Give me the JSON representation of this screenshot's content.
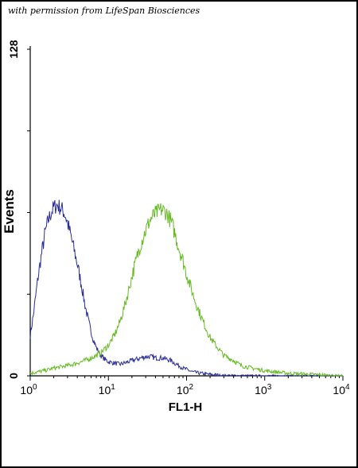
{
  "credit": "with permission from LifeSpan Biosciences",
  "colors": {
    "series_blue": "#2b2e9a",
    "series_green": "#66bb22",
    "axis": "#000000"
  },
  "chart_data": {
    "type": "line",
    "title": "",
    "xlabel": "FL1-H",
    "ylabel": "Events",
    "x_scale": "log",
    "xlim": [
      1,
      10000
    ],
    "ylim": [
      0,
      128
    ],
    "x_ticks": [
      {
        "base": "10",
        "exp": "0"
      },
      {
        "base": "10",
        "exp": "1"
      },
      {
        "base": "10",
        "exp": "2"
      },
      {
        "base": "10",
        "exp": "3"
      },
      {
        "base": "10",
        "exp": "4"
      }
    ],
    "y_ticks": [
      "0",
      "128"
    ],
    "grid": false,
    "legend": "none",
    "series": [
      {
        "color": "#2b2e9a",
        "x": [
          1.0,
          1.1,
          1.25,
          1.4,
          1.55,
          1.7,
          1.85,
          2.0,
          2.2,
          2.4,
          2.6,
          2.8,
          3.0,
          3.3,
          3.6,
          4.0,
          4.5,
          5.0,
          5.6,
          6.3,
          7.0,
          8.0,
          9.0,
          10,
          12,
          14,
          16,
          18,
          20,
          23,
          26,
          30,
          35,
          40,
          45,
          50,
          56,
          63,
          70,
          80,
          90,
          100,
          120,
          150,
          200,
          300,
          500,
          1000,
          10000
        ],
        "y": [
          16,
          24,
          38,
          48,
          56,
          61,
          64,
          66,
          67,
          66,
          65,
          63,
          60,
          55,
          50,
          44,
          36,
          28,
          21,
          15,
          11,
          8,
          6.5,
          5.5,
          5,
          4.5,
          5,
          5.5,
          6,
          6.5,
          7,
          7.5,
          7.5,
          7,
          7,
          7,
          6.5,
          6,
          5,
          4,
          3,
          2.5,
          1.5,
          1,
          0.5,
          0.2,
          0.1,
          0,
          0
        ]
      },
      {
        "color": "#66bb22",
        "x": [
          1.0,
          1.5,
          2.0,
          3.0,
          4.0,
          5.0,
          6.0,
          7.0,
          8.0,
          10,
          12,
          14,
          16,
          18,
          20,
          23,
          26,
          30,
          34,
          38,
          42,
          46,
          50,
          55,
          60,
          66,
          72,
          80,
          90,
          100,
          115,
          130,
          150,
          175,
          200,
          250,
          300,
          400,
          500,
          700,
          1000,
          2000,
          10000
        ],
        "y": [
          1,
          2,
          3,
          4,
          5,
          6,
          7,
          8,
          9,
          12,
          16,
          21,
          27,
          33,
          39,
          46,
          52,
          57,
          61,
          63,
          64,
          65,
          65,
          64,
          62,
          59,
          55,
          50,
          45,
          40,
          34,
          29,
          24,
          19,
          15,
          11,
          8,
          6,
          4,
          3,
          2,
          1,
          0
        ]
      }
    ]
  }
}
